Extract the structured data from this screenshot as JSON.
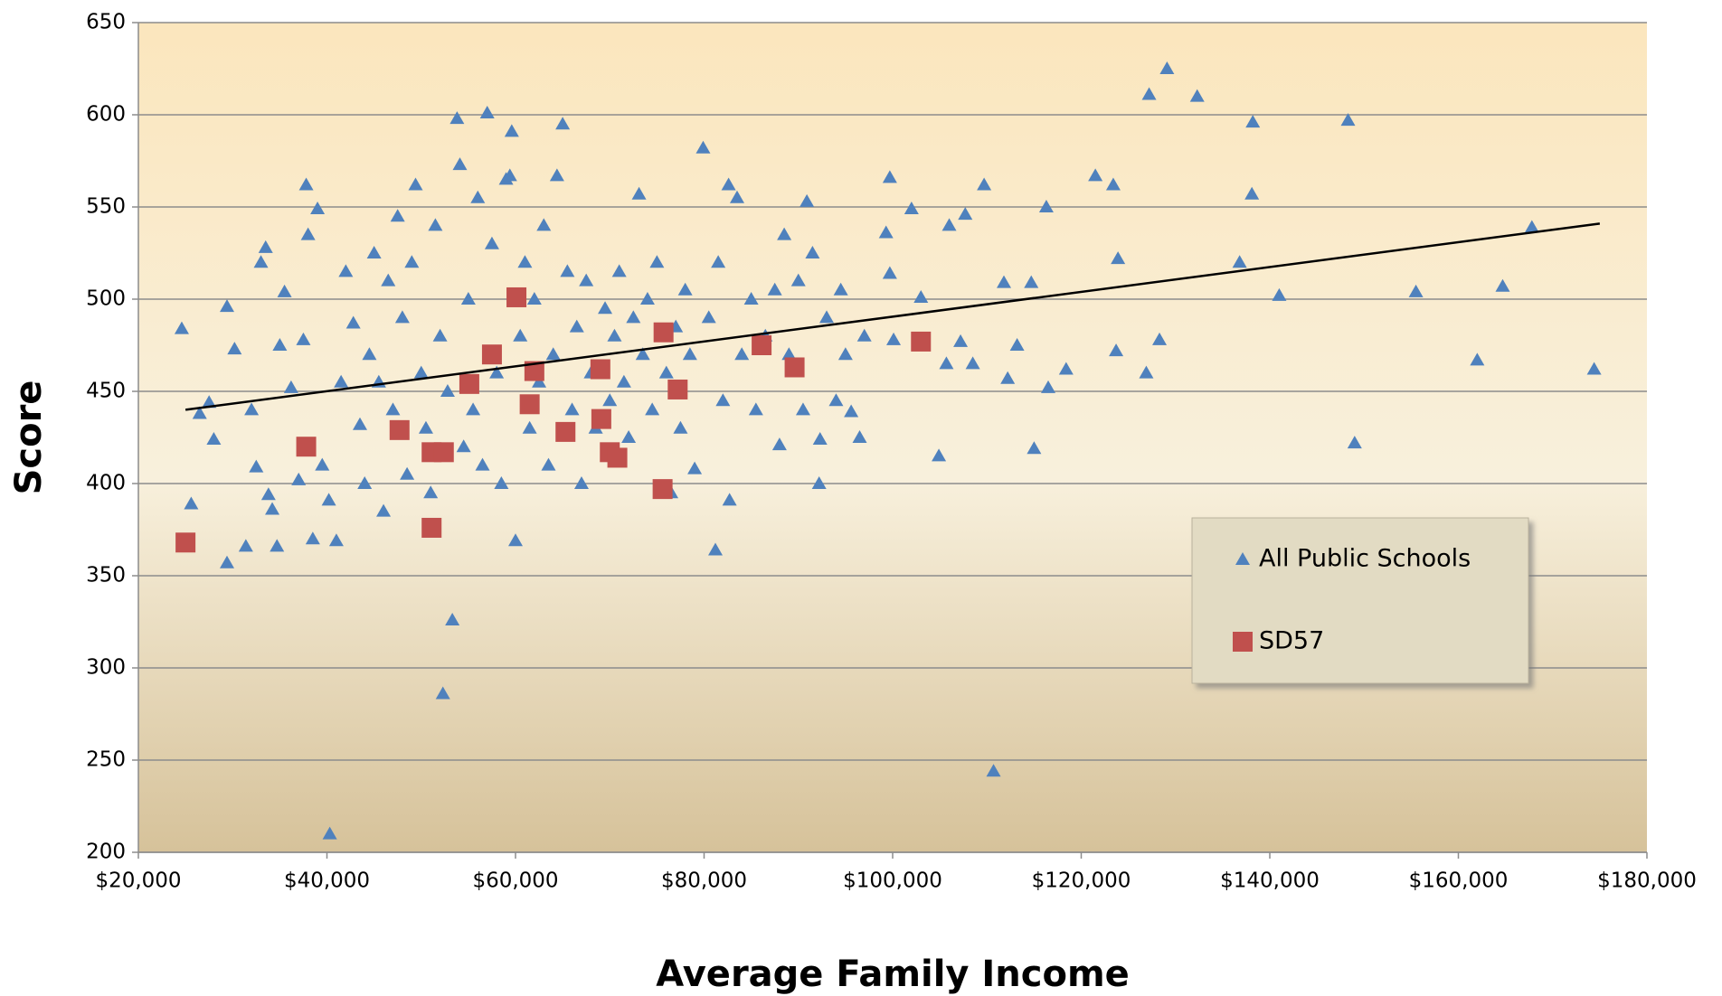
{
  "chart_data": {
    "type": "scatter",
    "x_label": "Average Family Income",
    "y_label": "Score",
    "xlim": [
      20000,
      180000
    ],
    "xticks": [
      {
        "value": 20000,
        "label": "$20,000"
      },
      {
        "value": 40000,
        "label": "$40,000"
      },
      {
        "value": 60000,
        "label": "$60,000"
      },
      {
        "value": 80000,
        "label": "$80,000"
      },
      {
        "value": 100000,
        "label": "$100,000"
      },
      {
        "value": 120000,
        "label": "$120,000"
      },
      {
        "value": 140000,
        "label": "$140,000"
      },
      {
        "value": 160000,
        "label": "$160,000"
      },
      {
        "value": 180000,
        "label": "$180,000"
      }
    ],
    "ylim": [
      200,
      650
    ],
    "yticks": [
      200,
      250,
      300,
      350,
      400,
      450,
      500,
      550,
      600,
      650
    ],
    "grid": true,
    "legend": "right",
    "series": [
      {
        "name": "All Public Schools",
        "color": "#4f81bd",
        "marker": "triangle",
        "x": [
          24600,
          25600,
          26500,
          27500,
          28000,
          29400,
          29400,
          30200,
          31400,
          32000,
          32500,
          33000,
          33500,
          33800,
          34200,
          34700,
          35000,
          35500,
          36200,
          37000,
          37500,
          37800,
          38000,
          38500,
          39000,
          39500,
          40200,
          40300,
          41000,
          41500,
          42000,
          42800,
          43500,
          44000,
          44500,
          45000,
          45500,
          46000,
          46500,
          47000,
          47500,
          48000,
          48500,
          49000,
          49400,
          50000,
          50500,
          51000,
          51500,
          52000,
          52300,
          52800,
          53300,
          53800,
          54100,
          54500,
          55000,
          55500,
          56000,
          56500,
          57000,
          57500,
          58000,
          58500,
          59000,
          59400,
          59600,
          60000,
          60500,
          61000,
          61500,
          62000,
          62500,
          63000,
          63500,
          64000,
          64400,
          65000,
          65500,
          66000,
          66500,
          67000,
          67500,
          68000,
          68500,
          69500,
          70000,
          70500,
          71000,
          71500,
          72000,
          72500,
          73100,
          73500,
          74000,
          74500,
          75000,
          76000,
          76500,
          77000,
          77500,
          78000,
          78500,
          79000,
          79900,
          80500,
          81200,
          81500,
          82000,
          82600,
          82700,
          83500,
          84000,
          85000,
          85500,
          86500,
          87500,
          88000,
          88500,
          89000,
          90000,
          90500,
          90900,
          91500,
          92200,
          92300,
          93000,
          94000,
          94500,
          95000,
          95600,
          96500,
          97000,
          99300,
          99700,
          99700,
          100100,
          102000,
          103000,
          104900,
          105700,
          106000,
          107200,
          107700,
          108500,
          109700,
          110700,
          111800,
          112200,
          113200,
          114700,
          115000,
          116300,
          116500,
          118400,
          121500,
          123400,
          123700,
          123900,
          126900,
          127200,
          128300,
          129100,
          132300,
          136800,
          138100,
          138200,
          141000,
          148300,
          149000,
          155500,
          162000,
          164700,
          167800,
          174400
        ],
        "values": [
          484,
          389,
          438,
          444,
          424,
          357,
          496,
          473,
          366,
          440,
          409,
          520,
          528,
          394,
          386,
          366,
          475,
          504,
          452,
          402,
          478,
          562,
          535,
          370,
          549,
          410,
          391,
          210,
          369,
          455,
          515,
          487,
          432,
          400,
          470,
          525,
          455,
          385,
          510,
          440,
          545,
          490,
          405,
          520,
          562,
          460,
          430,
          395,
          540,
          480,
          286,
          450,
          326,
          598,
          573,
          420,
          500,
          440,
          555,
          410,
          601,
          530,
          460,
          400,
          565,
          567,
          591,
          369,
          480,
          520,
          430,
          500,
          455,
          540,
          410,
          470,
          567,
          595,
          515,
          440,
          485,
          400,
          510,
          460,
          430,
          495,
          445,
          480,
          515,
          455,
          425,
          490,
          557,
          470,
          500,
          440,
          520,
          460,
          395,
          485,
          430,
          505,
          470,
          408,
          582,
          490,
          364,
          520,
          445,
          562,
          391,
          555,
          470,
          500,
          440,
          480,
          505,
          421,
          535,
          470,
          510,
          440,
          553,
          525,
          400,
          424,
          490,
          445,
          505,
          470,
          439,
          425,
          480,
          536,
          514,
          566,
          478,
          549,
          501,
          415,
          465,
          540,
          477,
          546,
          465,
          562,
          244,
          509,
          457,
          475,
          509,
          419,
          550,
          452,
          462,
          567,
          562,
          472,
          522,
          460,
          611,
          478,
          625,
          610,
          520,
          557,
          596,
          502,
          597,
          422,
          504,
          467,
          507,
          539,
          462
        ]
      },
      {
        "name": "SD57",
        "color": "#c0504d",
        "marker": "square",
        "x": [
          25000,
          37800,
          47700,
          51100,
          51100,
          52400,
          55100,
          57500,
          60100,
          61500,
          62000,
          65300,
          69000,
          69100,
          70000,
          70800,
          75600,
          75700,
          77200,
          86100,
          89600,
          103000
        ],
        "values": [
          368,
          420,
          429,
          376,
          417,
          417,
          454,
          470,
          501,
          443,
          461,
          428,
          462,
          435,
          417,
          414,
          397,
          482,
          451,
          475,
          463,
          477
        ]
      }
    ],
    "trendline": {
      "color": "#000000",
      "x": [
        25000,
        175000
      ],
      "y": [
        440,
        541
      ]
    }
  }
}
